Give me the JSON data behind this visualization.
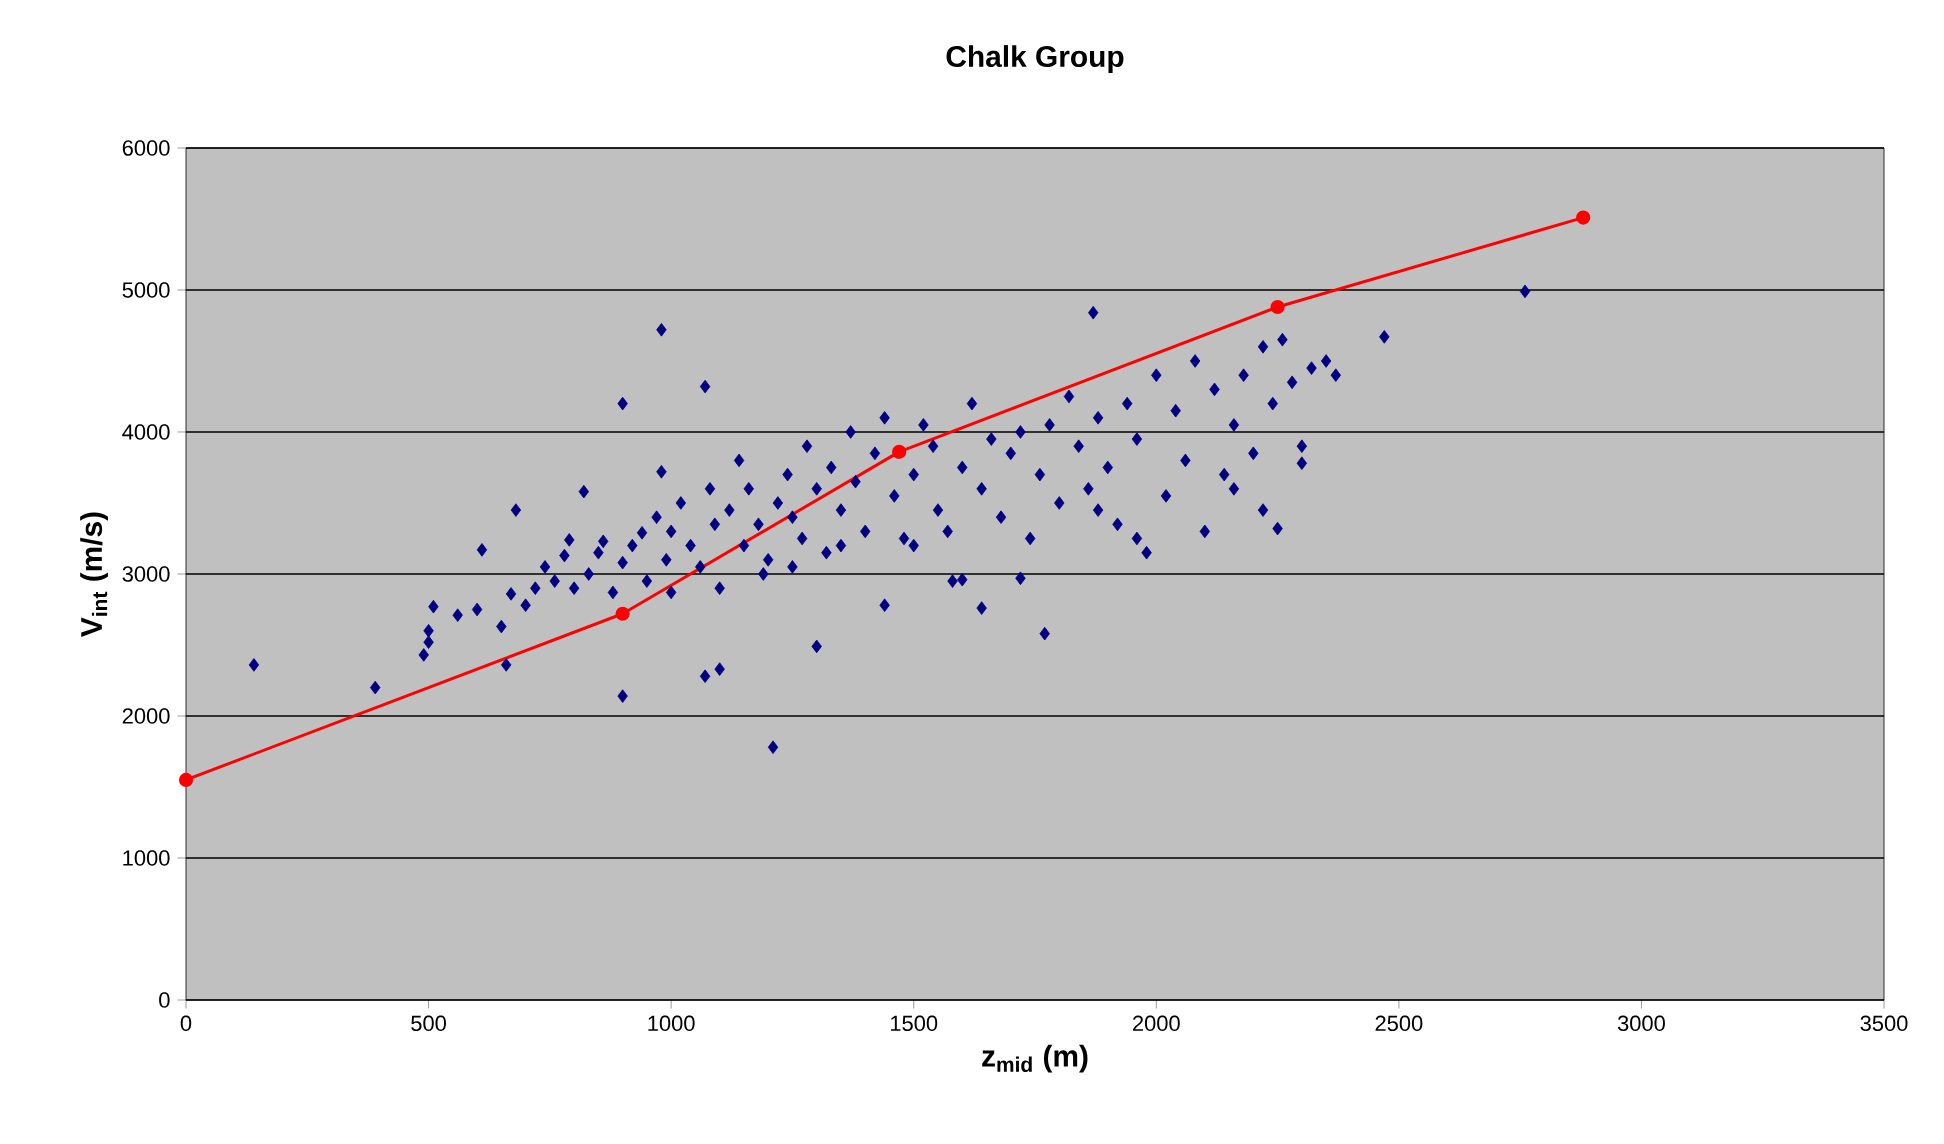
{
  "chart_data": {
    "type": "scatter",
    "title": "Chalk Group",
    "xlabel": "z$_{mid}$ (m)",
    "ylabel": "V$_{int}$ (m/s)",
    "xlim": [
      0,
      3500
    ],
    "ylim": [
      0,
      6000
    ],
    "xticks": [
      0,
      500,
      1000,
      1500,
      2000,
      2500,
      3000,
      3500
    ],
    "yticks": [
      0,
      1000,
      2000,
      3000,
      4000,
      5000,
      6000
    ],
    "grid": "y",
    "series": [
      {
        "marker": "diamond",
        "color": "#000080",
        "x": [
          140,
          390,
          900,
          980,
          1070,
          900,
          1210,
          1300,
          1770,
          1870,
          2760,
          2470,
          1640,
          1440,
          1100,
          1070,
          660,
          610,
          680,
          820,
          490,
          500,
          500,
          510,
          560,
          600,
          650,
          670,
          700,
          720,
          740,
          760,
          780,
          790,
          800,
          830,
          850,
          860,
          880,
          900,
          920,
          940,
          950,
          970,
          980,
          990,
          1000,
          1020,
          1040,
          1060,
          1080,
          1090,
          1100,
          1120,
          1140,
          1150,
          1160,
          1180,
          1200,
          1220,
          1240,
          1250,
          1270,
          1280,
          1300,
          1320,
          1330,
          1350,
          1370,
          1380,
          1400,
          1420,
          1440,
          1460,
          1480,
          1500,
          1520,
          1540,
          1550,
          1570,
          1600,
          1620,
          1640,
          1660,
          1680,
          1700,
          1720,
          1740,
          1760,
          1780,
          1800,
          1820,
          1840,
          1860,
          1880,
          1900,
          1920,
          1940,
          1960,
          1980,
          2000,
          2020,
          2040,
          2060,
          2080,
          2100,
          2120,
          2140,
          2160,
          2180,
          2200,
          2220,
          2240,
          2250,
          2260,
          2280,
          2300,
          2300,
          2320,
          2350,
          2370,
          2220,
          2160,
          1960,
          1880,
          1600,
          1580,
          1720,
          1500,
          1190,
          1000,
          1250,
          1350
        ],
        "values": [
          2360,
          2200,
          4200,
          4720,
          4320,
          2140,
          1780,
          2490,
          2580,
          4840,
          4990,
          4670,
          2760,
          2780,
          2330,
          2280,
          2360,
          3170,
          3450,
          3580,
          2430,
          2520,
          2600,
          2770,
          2710,
          2750,
          2630,
          2860,
          2780,
          2900,
          3050,
          2950,
          3130,
          3240,
          2900,
          3000,
          3150,
          3230,
          2870,
          3080,
          3200,
          3290,
          2950,
          3400,
          3720,
          3100,
          3300,
          3500,
          3200,
          3050,
          3600,
          3350,
          2900,
          3450,
          3800,
          3200,
          3600,
          3350,
          3100,
          3500,
          3700,
          3400,
          3250,
          3900,
          3600,
          3150,
          3750,
          3450,
          4000,
          3650,
          3300,
          3850,
          4100,
          3550,
          3250,
          3700,
          4050,
          3900,
          3450,
          3300,
          3750,
          4200,
          3600,
          3950,
          3400,
          3850,
          4000,
          3250,
          3700,
          4050,
          3500,
          4250,
          3900,
          3600,
          4100,
          3750,
          3350,
          4200,
          3950,
          3150,
          4400,
          3550,
          4150,
          3800,
          4500,
          3300,
          4300,
          3700,
          4050,
          4400,
          3850,
          4600,
          4200,
          3320,
          4650,
          4350,
          3900,
          3780,
          4450,
          4500,
          4400,
          3450,
          3600,
          3250,
          3450,
          2960,
          2950,
          2970,
          3200,
          3000,
          2870,
          3050,
          3200
        ]
      },
      {
        "type": "line",
        "marker": "circle",
        "line_style": "solid",
        "color": "#ff0000",
        "x": [
          0,
          900,
          1470,
          2250,
          2880
        ],
        "values": [
          1550,
          2720,
          3860,
          4880,
          5510
        ]
      }
    ]
  }
}
